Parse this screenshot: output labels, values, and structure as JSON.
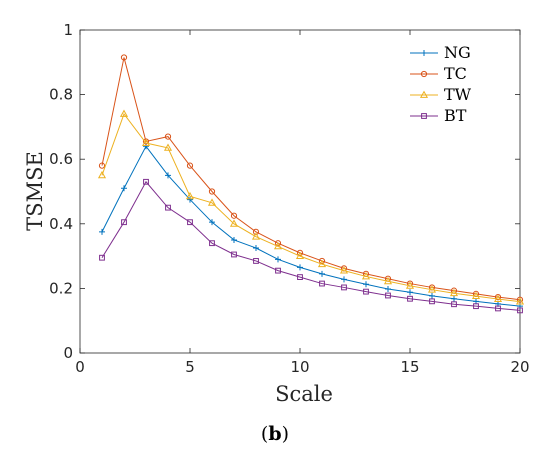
{
  "chart_data": {
    "type": "line",
    "xlabel": "Scale",
    "ylabel": "TSMSE",
    "xlim": [
      0,
      20
    ],
    "ylim": [
      0,
      1
    ],
    "xticks": [
      "0",
      "5",
      "10",
      "15",
      "20"
    ],
    "yticks": [
      "0",
      "0.2",
      "0.4",
      "0.6",
      "0.8",
      "1"
    ],
    "x": [
      1,
      2,
      3,
      4,
      5,
      6,
      7,
      8,
      9,
      10,
      11,
      12,
      13,
      14,
      15,
      16,
      17,
      18,
      19,
      20
    ],
    "legend_position": "top-right",
    "series": [
      {
        "name": "NG",
        "color": "#0072BD",
        "marker": "plus",
        "values": [
          0.375,
          0.51,
          0.64,
          0.55,
          0.475,
          0.405,
          0.35,
          0.325,
          0.29,
          0.265,
          0.245,
          0.228,
          0.213,
          0.198,
          0.188,
          0.177,
          0.168,
          0.16,
          0.152,
          0.145
        ]
      },
      {
        "name": "TC",
        "color": "#D95319",
        "marker": "circle",
        "values": [
          0.58,
          0.915,
          0.655,
          0.67,
          0.58,
          0.5,
          0.425,
          0.375,
          0.34,
          0.31,
          0.285,
          0.262,
          0.245,
          0.23,
          0.215,
          0.203,
          0.193,
          0.183,
          0.173,
          0.165
        ]
      },
      {
        "name": "TW",
        "color": "#EDB120",
        "marker": "triangle",
        "values": [
          0.55,
          0.74,
          0.65,
          0.635,
          0.485,
          0.465,
          0.4,
          0.36,
          0.33,
          0.3,
          0.275,
          0.255,
          0.237,
          0.222,
          0.208,
          0.196,
          0.185,
          0.176,
          0.167,
          0.159
        ]
      },
      {
        "name": "BT",
        "color": "#7E2F8E",
        "marker": "square",
        "values": [
          0.295,
          0.405,
          0.53,
          0.45,
          0.405,
          0.34,
          0.305,
          0.285,
          0.255,
          0.235,
          0.215,
          0.203,
          0.19,
          0.178,
          0.168,
          0.16,
          0.151,
          0.145,
          0.138,
          0.132
        ]
      }
    ],
    "caption_bold": "b",
    "caption_open": "(",
    "caption_close": ")"
  }
}
